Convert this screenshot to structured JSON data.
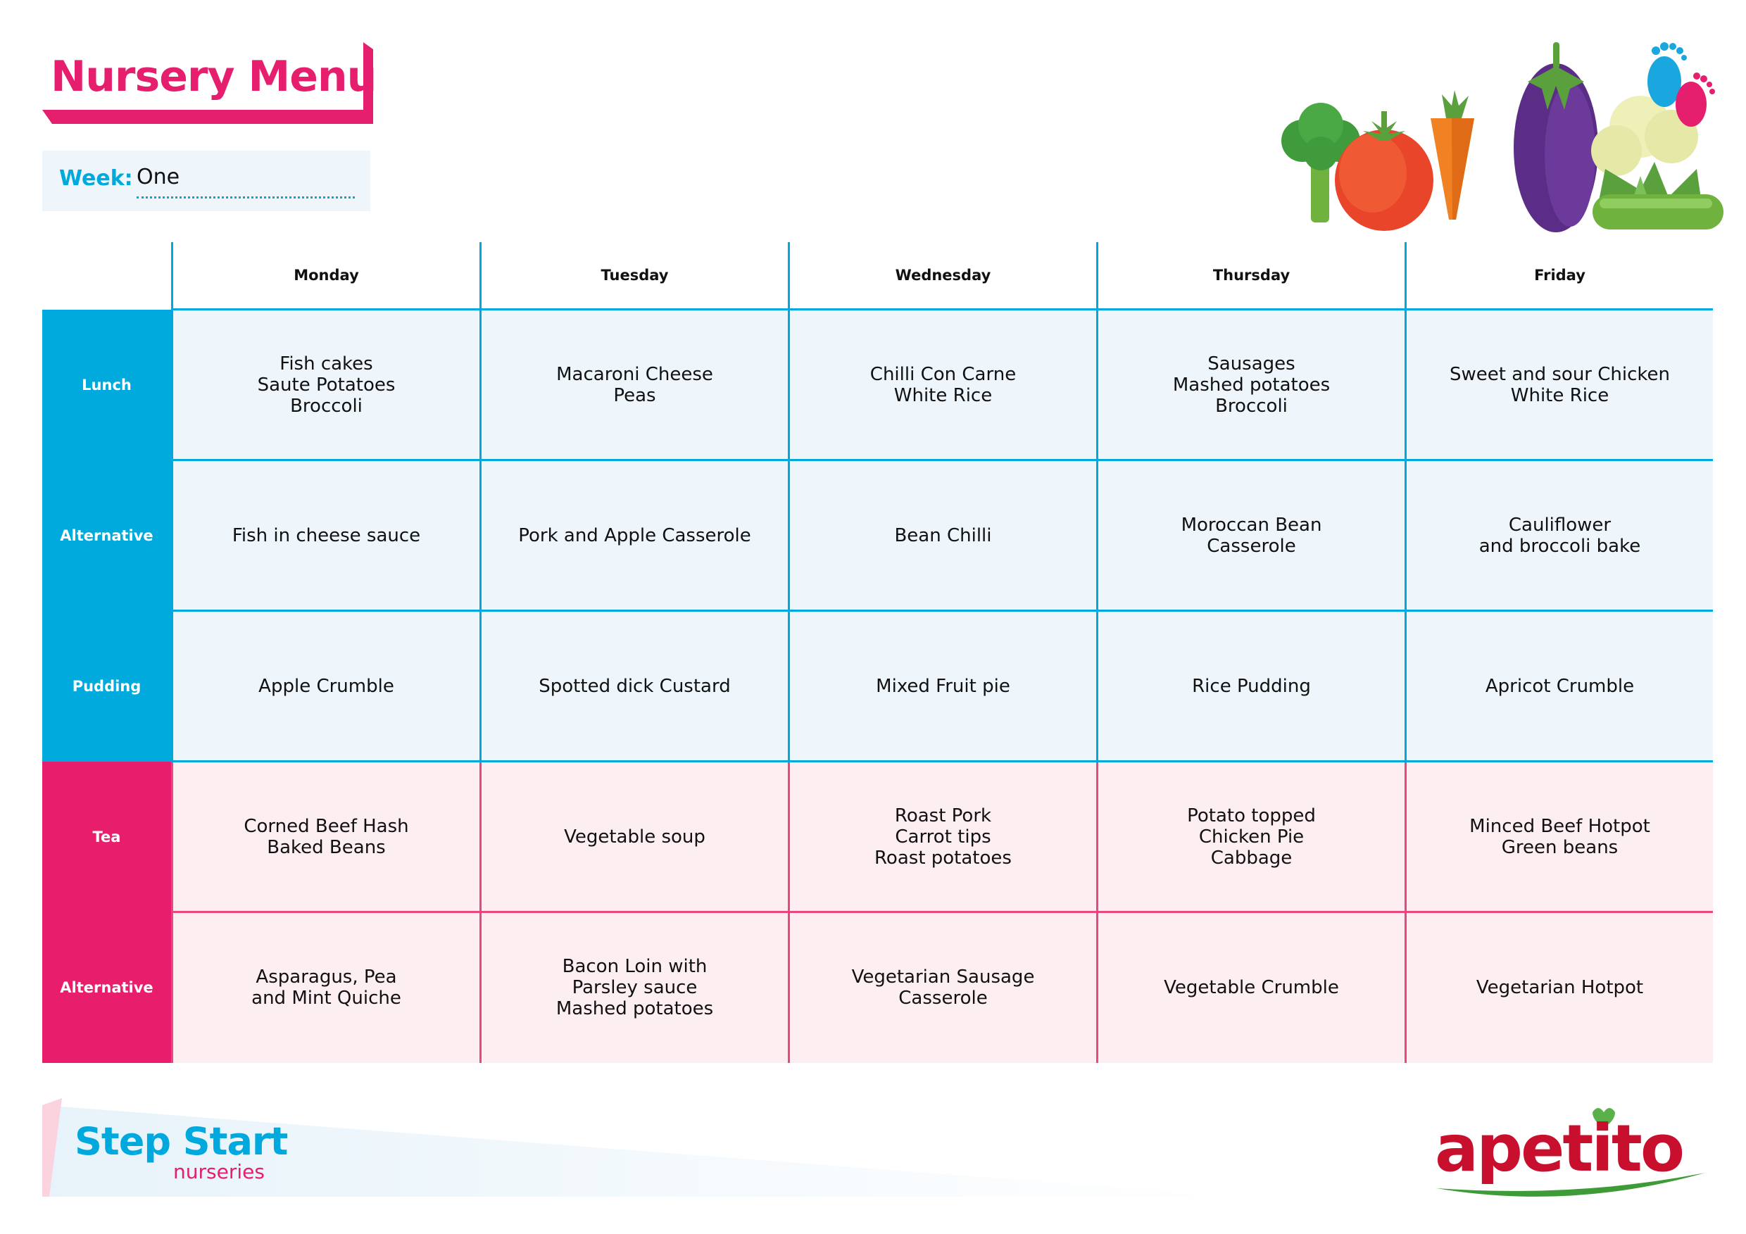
{
  "title": "Nursery Menu",
  "week": {
    "label": "Week:",
    "value": "One"
  },
  "days": [
    "Monday",
    "Tuesday",
    "Wednesday",
    "Thursday",
    "Friday"
  ],
  "rows": [
    {
      "label": "Lunch",
      "theme": "blue",
      "cells": [
        [
          "Fish cakes",
          "Saute Potatoes",
          "Broccoli"
        ],
        [
          "Macaroni Cheese",
          "Peas"
        ],
        [
          "Chilli Con Carne",
          "White Rice"
        ],
        [
          "Sausages",
          "Mashed potatoes",
          "Broccoli"
        ],
        [
          "Sweet and sour Chicken",
          "White Rice"
        ]
      ]
    },
    {
      "label": "Alternative",
      "theme": "blue",
      "cells": [
        [
          "Fish in cheese sauce"
        ],
        [
          "Pork and Apple Casserole"
        ],
        [
          "Bean Chilli"
        ],
        [
          "Moroccan Bean",
          "Casserole"
        ],
        [
          "Cauliflower",
          "and broccoli bake"
        ]
      ]
    },
    {
      "label": "Pudding",
      "theme": "blue",
      "cells": [
        [
          "Apple Crumble"
        ],
        [
          "Spotted dick Custard"
        ],
        [
          "Mixed Fruit pie"
        ],
        [
          "Rice Pudding"
        ],
        [
          "Apricot Crumble"
        ]
      ]
    },
    {
      "label": "Tea",
      "theme": "pink",
      "cells": [
        [
          "Corned Beef Hash",
          "Baked Beans"
        ],
        [
          "Vegetable soup"
        ],
        [
          "Roast Pork",
          "Carrot tips",
          "Roast potatoes"
        ],
        [
          "Potato topped",
          "Chicken Pie",
          "Cabbage"
        ],
        [
          "Minced Beef Hotpot",
          "Green beans"
        ]
      ]
    },
    {
      "label": "Alternative",
      "theme": "pink",
      "cells": [
        [
          "Asparagus, Pea",
          "and Mint Quiche"
        ],
        [
          "Bacon Loin with",
          "Parsley sauce",
          "Mashed potatoes"
        ],
        [
          "Vegetarian Sausage",
          "Casserole"
        ],
        [
          "Vegetable Crumble"
        ],
        [
          "Vegetarian Hotpot"
        ]
      ]
    }
  ],
  "footer": {
    "stepstart_name": "Step Start",
    "stepstart_sub": "nurseries",
    "apetito": "apetito"
  },
  "colors": {
    "blue": "#00aadd",
    "pink": "#e81e6c"
  },
  "icons": [
    "vegetables-illustration",
    "footprints-icon"
  ]
}
